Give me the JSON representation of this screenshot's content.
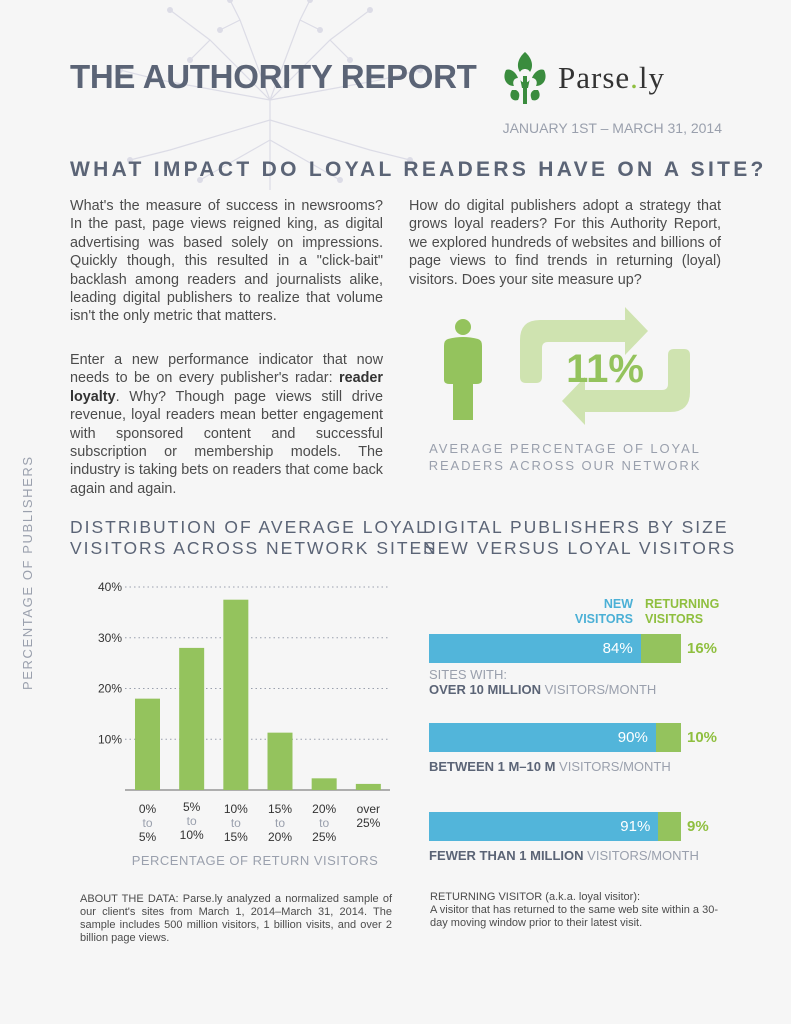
{
  "header": {
    "title": "THE AUTHORITY REPORT",
    "logo_text_main": "Parse",
    "logo_text_dot": ".",
    "logo_text_tail": "ly",
    "date_range": "JANUARY 1ST – MARCH 31, 2014"
  },
  "question": "WHAT IMPACT DO LOYAL READERS HAVE ON A SITE?",
  "paragraphs": {
    "p1": "What's the measure of success in newsrooms? In the past, page views reigned king, as digital advertising was based solely on impressions. Quickly though, this resulted in a \"click-bait\" backlash among readers and journalists alike, leading digital publishers to realize that volume isn't the only metric that matters.",
    "p2_before": "Enter a new performance indicator that now needs to be on every publisher's radar: ",
    "p2_bold": "reader loyalty",
    "p2_after": ". Why? Though page views still drive revenue, loyal readers mean better engagement with sponsored content and successful subscription or membership models. The industry is taking bets on readers that come back again and again.",
    "p3": "How do digital publishers adopt a strategy that grows loyal readers? For this Authority Report, we explored hundreds of websites and billions of page views to find trends in returning (loyal) visitors. Does your site measure up?"
  },
  "loyal_stat": {
    "value": "11%",
    "caption_line1": "AVERAGE PERCENTAGE OF LOYAL",
    "caption_line2": "READERS ACROSS OUR NETWORK"
  },
  "colors": {
    "title": "#5b6476",
    "green": "#94c35d",
    "light_green": "#cfe3b0",
    "blue": "#52b5da",
    "muted": "#9aa0ad"
  },
  "chart_left": {
    "title_line1": "DISTRIBUTION OF AVERAGE LOYAL",
    "title_line2": "VISITORS ACROSS NETWORK SITES",
    "ylabel": "PERCENTAGE OF PUBLISHERS",
    "xlabel": "PERCENTAGE OF RETURN VISITORS",
    "y_ticks": [
      "40%",
      "30%",
      "20%",
      "10%"
    ],
    "x_ticks": [
      {
        "a": "0%",
        "b": "to",
        "c": "5%"
      },
      {
        "a": "5%",
        "b": "to",
        "c": "10%"
      },
      {
        "a": "10%",
        "b": "to",
        "c": "15%"
      },
      {
        "a": "15%",
        "b": "to",
        "c": "20%"
      },
      {
        "a": "20%",
        "b": "to",
        "c": "25%"
      },
      {
        "a": "over",
        "b": "25%",
        "c": ""
      }
    ]
  },
  "chart_right": {
    "title_line1": "DIGITAL PUBLISHERS BY SIZE",
    "title_line2": "NEW VERSUS LOYAL VISITORS",
    "legend_new_1": "NEW",
    "legend_new_2": "VISITORS",
    "legend_ret_1": "RETURNING",
    "legend_ret_2": "VISITORS",
    "rows": [
      {
        "new_label": "84%",
        "ret_label": "16%",
        "pre": "SITES WITH:",
        "bold": "OVER 10 MILLION",
        "suffix": " VISITORS/MONTH"
      },
      {
        "new_label": "90%",
        "ret_label": "10%",
        "pre": "",
        "bold": "BETWEEN 1 M–10 M",
        "suffix": " VISITORS/MONTH"
      },
      {
        "new_label": "91%",
        "ret_label": "9%",
        "pre": "",
        "bold": "FEWER THAN 1 MILLION",
        "suffix": " VISITORS/MONTH"
      }
    ]
  },
  "chart_data": [
    {
      "type": "bar",
      "title": "DISTRIBUTION OF AVERAGE LOYAL VISITORS ACROSS NETWORK SITES",
      "xlabel": "PERCENTAGE OF RETURN VISITORS",
      "ylabel": "PERCENTAGE OF PUBLISHERS",
      "categories": [
        "0% to 5%",
        "5% to 10%",
        "10% to 15%",
        "15% to 20%",
        "20% to 25%",
        "over 25%"
      ],
      "values": [
        18,
        28,
        37.5,
        11.3,
        2.3,
        1.2
      ],
      "ylim": [
        0,
        40
      ],
      "grid": true
    },
    {
      "type": "bar",
      "title": "DIGITAL PUBLISHERS BY SIZE NEW VERSUS LOYAL VISITORS",
      "categories": [
        "OVER 10 MILLION VISITORS/MONTH",
        "BETWEEN 1 M–10 M VISITORS/MONTH",
        "FEWER THAN 1 MILLION VISITORS/MONTH"
      ],
      "series": [
        {
          "name": "NEW VISITORS",
          "values": [
            84,
            90,
            91
          ]
        },
        {
          "name": "RETURNING VISITORS",
          "values": [
            16,
            10,
            9
          ]
        }
      ],
      "stacked": true,
      "orientation": "horizontal"
    }
  ],
  "footer": {
    "about": "ABOUT THE DATA: Parse.ly analyzed a normalized sample of our client's sites from March 1, 2014–March 31, 2014. The sample includes 500 million visitors, 1 billion visits, and over 2 billion page views.",
    "returning_def_1": "RETURNING VISITOR (a.k.a. loyal visitor):",
    "returning_def_2": "A visitor that has returned to the same web site within a 30-day moving window prior to their latest visit."
  }
}
